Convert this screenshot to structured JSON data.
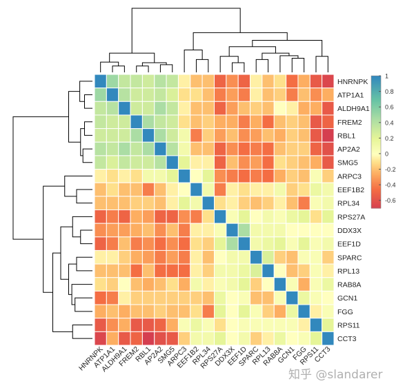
{
  "chart_data": {
    "type": "heatmap",
    "title": "",
    "labels": [
      "HNRNPK",
      "ATP1A1",
      "ALDH9A1",
      "FREM2",
      "RBL1",
      "AP2A2",
      "SMG5",
      "ARPC3",
      "EEF1B2",
      "RPL34",
      "RPS27A",
      "DDX3X",
      "EEF1D",
      "SPARC",
      "RPL13",
      "RAB8A",
      "GCN1",
      "FGG",
      "RPS11",
      "CCT3"
    ],
    "upper_triangle": [
      [
        1,
        0.5,
        0.35,
        0.35,
        0.3,
        0.4,
        0.35,
        -0.05,
        -0.2,
        -0.2,
        -0.5,
        -0.35,
        -0.5,
        -0.05,
        -0.2,
        -0.1,
        -0.45,
        -0.25,
        -0.55,
        -0.65
      ],
      [
        1,
        0.4,
        0.3,
        0.3,
        0.35,
        0.25,
        -0.1,
        -0.1,
        -0.2,
        -0.4,
        -0.3,
        -0.4,
        -0.05,
        -0.2,
        -0.15,
        -0.4,
        -0.2,
        -0.35,
        -0.25
      ],
      [
        1,
        0.3,
        0.3,
        0.45,
        0.35,
        -0.05,
        -0.2,
        -0.2,
        -0.5,
        -0.3,
        -0.2,
        -0.15,
        -0.2,
        0,
        -0.05,
        -0.25,
        -0.25,
        -0.55
      ],
      [
        1,
        0.45,
        0.35,
        0.3,
        -0.1,
        -0.2,
        -0.15,
        -0.25,
        -0.25,
        -0.4,
        -0.25,
        -0.45,
        -0.2,
        -0.15,
        -0.2,
        -0.55,
        -0.5
      ],
      [
        1,
        0.45,
        0.3,
        0.1,
        -0.4,
        -0.15,
        -0.3,
        -0.2,
        -0.35,
        -0.3,
        -0.2,
        -0.25,
        -0.15,
        -0.2,
        -0.55,
        -0.7
      ],
      [
        1,
        0.4,
        0.1,
        -0.2,
        -0.2,
        -0.5,
        -0.35,
        -0.45,
        -0.4,
        -0.45,
        -0.2,
        -0.15,
        -0.15,
        -0.5,
        -0.6
      ],
      [
        1,
        0.2,
        -0.05,
        -0.05,
        -0.5,
        -0.2,
        -0.35,
        -0.3,
        -0.45,
        -0.1,
        -0.15,
        -0.2,
        -0.25,
        -0.55
      ],
      [
        1,
        0,
        0.2,
        -0.35,
        -0.4,
        -0.45,
        -0.4,
        -0.45,
        -0.25,
        -0.15,
        -0.2,
        0.05,
        -0.15
      ],
      [
        1,
        0.1,
        -0.4,
        -0.05,
        -0.1,
        -0.05,
        -0.05,
        0.1,
        -0.15,
        -0.1,
        0.15,
        0.1
      ],
      [
        1,
        -0.1,
        -0.05,
        -0.15,
        -0.2,
        -0.15,
        -0.05,
        -0.2,
        -0.4,
        0.05,
        0.1
      ],
      [
        1,
        0.05,
        0.2,
        0,
        0.1,
        0.05,
        0.15,
        0.2,
        -0.1,
        0.2
      ],
      [
        1,
        0.45,
        0.1,
        0.1,
        0.1,
        0,
        0,
        0,
        0
      ],
      [
        1,
        0.1,
        0.15,
        0.2,
        0.05,
        0.2,
        0.05,
        0.1
      ],
      [
        1,
        0.25,
        -0.15,
        -0.2,
        0.05,
        0.05,
        -0.15
      ],
      [
        1,
        0,
        -0.2,
        -0.15,
        0.05,
        -0.05
      ],
      [
        1,
        0.05,
        -0.25,
        0.05,
        0.15
      ],
      [
        1,
        0.15,
        0.05,
        0
      ],
      [
        1,
        -0.05,
        0.05
      ],
      [
        1,
        0.2
      ],
      [
        1
      ]
    ],
    "colorbar": {
      "range": [
        -0.7,
        1
      ],
      "ticks": [
        "1",
        "0.8",
        "0.6",
        "0.4",
        "0.2",
        "0",
        "-0.2",
        "-0.4",
        "-0.6"
      ],
      "colormap": [
        "#d53e4f",
        "#f46d43",
        "#fdae61",
        "#fee08b",
        "#ffffbf",
        "#e6f598",
        "#abdda4",
        "#66c2a5",
        "#3288bd"
      ]
    },
    "dendrogram": {
      "rows": true,
      "columns": true
    },
    "legend": "right"
  },
  "watermark": "知乎 @slandarer"
}
